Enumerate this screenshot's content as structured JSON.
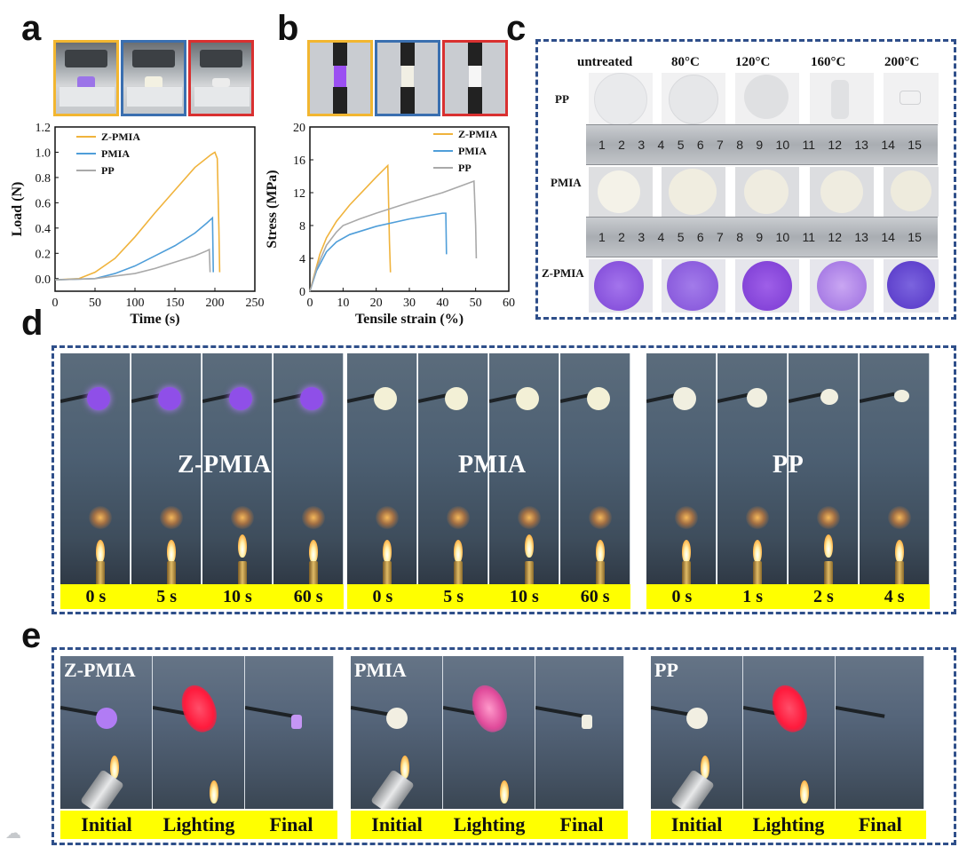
{
  "panels": {
    "a": "a",
    "b": "b",
    "c": "c",
    "d": "d",
    "e": "e"
  },
  "colors": {
    "zpmia": "#f0b33c",
    "pmia": "#4f9ed9",
    "pp": "#a9a9a9",
    "frame_yellow": "#f2b630",
    "frame_blue": "#3a6fb0",
    "frame_red": "#d93030",
    "dash": "#2f4f8a"
  },
  "chart_data": [
    {
      "type": "line",
      "panel": "a",
      "xlabel": "Time (s)",
      "ylabel": "Load (N)",
      "xlim": [
        0,
        250
      ],
      "ylim": [
        -0.1,
        1.2
      ],
      "xticks": [
        "0",
        "50",
        "100",
        "150",
        "200",
        "250"
      ],
      "yticks": [
        "0.0",
        "0.2",
        "0.4",
        "0.6",
        "0.8",
        "1.0",
        "1.2"
      ],
      "xtick_values": [
        0,
        50,
        100,
        150,
        200,
        250
      ],
      "ytick_values": [
        0.0,
        0.2,
        0.4,
        0.6,
        0.8,
        1.0,
        1.2
      ],
      "legend": [
        "Z-PMIA",
        "PMIA",
        "PP"
      ],
      "series": [
        {
          "name": "Z-PMIA",
          "color": "#f0b33c",
          "x": [
            0,
            30,
            50,
            75,
            100,
            125,
            150,
            175,
            195,
            200,
            203,
            205,
            206
          ],
          "y": [
            -0.01,
            0.0,
            0.05,
            0.16,
            0.33,
            0.52,
            0.7,
            0.88,
            0.98,
            1.0,
            0.95,
            0.4,
            0.05
          ]
        },
        {
          "name": "PMIA",
          "color": "#4f9ed9",
          "x": [
            0,
            50,
            75,
            100,
            125,
            150,
            175,
            190,
            197,
            198
          ],
          "y": [
            -0.01,
            0.0,
            0.04,
            0.1,
            0.18,
            0.26,
            0.36,
            0.44,
            0.48,
            0.05
          ]
        },
        {
          "name": "PP",
          "color": "#a9a9a9",
          "x": [
            0,
            50,
            100,
            125,
            150,
            175,
            190,
            193,
            194
          ],
          "y": [
            -0.01,
            0.0,
            0.04,
            0.08,
            0.13,
            0.18,
            0.22,
            0.23,
            0.05
          ]
        }
      ]
    },
    {
      "type": "line",
      "panel": "b",
      "xlabel": "Tensile strain (%)",
      "ylabel": "Stress (MPa)",
      "xlim": [
        0,
        60
      ],
      "ylim": [
        0,
        20
      ],
      "xticks": [
        "0",
        "10",
        "20",
        "30",
        "40",
        "50",
        "60"
      ],
      "yticks": [
        "0",
        "4",
        "8",
        "12",
        "16",
        "20"
      ],
      "xtick_values": [
        0,
        10,
        20,
        30,
        40,
        50,
        60
      ],
      "ytick_values": [
        0,
        4,
        8,
        12,
        16,
        20
      ],
      "legend": [
        "Z-PMIA",
        "PMIA",
        "PP"
      ],
      "series": [
        {
          "name": "Z-PMIA",
          "color": "#f0b33c",
          "x": [
            0,
            1,
            3,
            5,
            8,
            12,
            16,
            20,
            23.5,
            24,
            24.3
          ],
          "y": [
            0,
            1.5,
            4.5,
            6.5,
            8.5,
            10.5,
            12.2,
            13.9,
            15.3,
            6,
            2.3
          ]
        },
        {
          "name": "PMIA",
          "color": "#4f9ed9",
          "x": [
            0,
            2,
            5,
            8,
            12,
            20,
            30,
            40,
            41,
            41.2
          ],
          "y": [
            0,
            2.5,
            4.8,
            6.0,
            6.9,
            7.9,
            8.8,
            9.5,
            9.5,
            4.5
          ]
        },
        {
          "name": "PP",
          "color": "#a9a9a9",
          "x": [
            0,
            2,
            5,
            8,
            10,
            15,
            20,
            30,
            40,
            49.5,
            50,
            50.2
          ],
          "y": [
            0,
            2.8,
            5.6,
            7.2,
            8.0,
            8.8,
            9.5,
            10.8,
            12.0,
            13.4,
            8,
            4.0
          ]
        }
      ]
    }
  ],
  "panel_c": {
    "columns": [
      "untreated",
      "80°C",
      "120°C",
      "160°C",
      "200°C"
    ],
    "rows": [
      "PP",
      "PMIA",
      "Z-PMIA"
    ],
    "ruler_numbers": [
      "1",
      "2",
      "3",
      "4",
      "5",
      "6",
      "7",
      "8",
      "9",
      "10",
      "11",
      "12",
      "13",
      "14",
      "15"
    ]
  },
  "panel_d": {
    "groups": [
      {
        "label": "Z-PMIA",
        "times": [
          "0 s",
          "5 s",
          "10 s",
          "60 s"
        ],
        "disc_color": "#8f4fe8"
      },
      {
        "label": "PMIA",
        "times": [
          "0 s",
          "5 s",
          "10 s",
          "60 s"
        ],
        "disc_color": "#f3f0d6"
      },
      {
        "label": "PP",
        "times": [
          "0 s",
          "1 s",
          "2 s",
          "4 s"
        ],
        "disc_color": "#f1efe0"
      }
    ]
  },
  "panel_e": {
    "groups": [
      {
        "label": "Z-PMIA",
        "stages": [
          "Initial",
          "Lighting",
          "Final"
        ]
      },
      {
        "label": "PMIA",
        "stages": [
          "Initial",
          "Lighting",
          "Final"
        ]
      },
      {
        "label": "PP",
        "stages": [
          "Initial",
          "Lighting",
          "Final"
        ]
      }
    ]
  }
}
